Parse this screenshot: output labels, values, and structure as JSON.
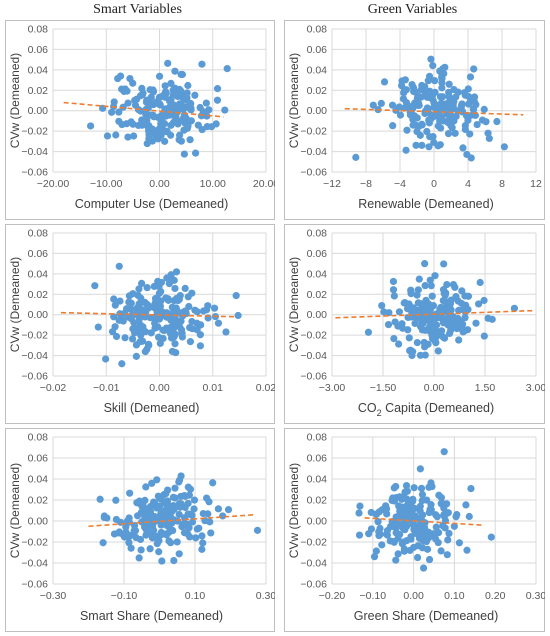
{
  "column_titles": [
    "Smart Variables",
    "Green Variables"
  ],
  "colors": {
    "point": "#5b9bd5",
    "trend": "#ed7d31",
    "grid": "#d9d9d9",
    "frame": "#bfbfbf",
    "text": "#595959"
  },
  "chart_data": [
    {
      "type": "scatter",
      "xlabel": "Computer Use (Demeaned)",
      "ylabel": "CVw (Demeaned)",
      "xlim": [
        -20,
        20
      ],
      "ylim": [
        -0.06,
        0.08
      ],
      "xticks": [
        -20,
        -10,
        0,
        10,
        20
      ],
      "xtick_labels": [
        "−20.00",
        "−10.00",
        "0.00",
        "10.00",
        "20.00"
      ],
      "yticks": [
        -0.06,
        -0.04,
        -0.02,
        0,
        0.02,
        0.04,
        0.06,
        0.08
      ],
      "ytick_labels": [
        "−0.06",
        "−0.04",
        "−0.02",
        "0.00",
        "0.02",
        "0.04",
        "0.06",
        "0.08"
      ],
      "trendline": [
        [
          -18,
          0.008
        ],
        [
          12,
          -0.006
        ]
      ],
      "grid": true
    },
    {
      "type": "scatter",
      "xlabel": "Renewable  (Demeaned)",
      "ylabel": "CVw (Demeaned)",
      "xlim": [
        -12,
        12
      ],
      "ylim": [
        -0.06,
        0.08
      ],
      "xticks": [
        -12,
        -8,
        -4,
        0,
        4,
        8,
        12
      ],
      "xtick_labels": [
        "−12",
        "−8",
        "−4",
        "0",
        "4",
        "8",
        "12"
      ],
      "yticks": [
        -0.06,
        -0.04,
        -0.02,
        0,
        0.02,
        0.04,
        0.06,
        0.08
      ],
      "ytick_labels": [
        "−0.06",
        "−0.04",
        "−0.02",
        "0.00",
        "0.02",
        "0.04",
        "0.06",
        "0.08"
      ],
      "trendline": [
        [
          -10.5,
          0.002
        ],
        [
          10.5,
          -0.004
        ]
      ],
      "grid": true
    },
    {
      "type": "scatter",
      "xlabel": "Skill  (Demeaned)",
      "ylabel": "CVw (Demeaned)",
      "xlim": [
        -0.02,
        0.02
      ],
      "ylim": [
        -0.06,
        0.08
      ],
      "xticks": [
        -0.02,
        -0.01,
        0,
        0.01,
        0.02
      ],
      "xtick_labels": [
        "−0.02",
        "−0.01",
        "0.00",
        "0.01",
        "0.02"
      ],
      "yticks": [
        -0.06,
        -0.04,
        -0.02,
        0,
        0.02,
        0.04,
        0.06,
        0.08
      ],
      "ytick_labels": [
        "−0.06",
        "−0.04",
        "−0.02",
        "0.00",
        "0.02",
        "0.04",
        "0.06",
        "0.08"
      ],
      "trendline": [
        [
          -0.0185,
          0.002
        ],
        [
          0.0145,
          -0.002
        ]
      ],
      "grid": true
    },
    {
      "type": "scatter",
      "xlabel_main": "CO",
      "xlabel_sub": "2",
      "xlabel_rest": " Capita (Demeaned)",
      "ylabel": "CVw (Demeaned)",
      "xlim": [
        -3,
        3
      ],
      "ylim": [
        -0.06,
        0.08
      ],
      "xticks": [
        -3,
        -1.5,
        0,
        1.5,
        3
      ],
      "xtick_labels": [
        "−3.00",
        "−1.50",
        "0.00",
        "1.50",
        "3.00"
      ],
      "yticks": [
        -0.06,
        -0.04,
        -0.02,
        0,
        0.02,
        0.04,
        0.06,
        0.08
      ],
      "ytick_labels": [
        "−0.06",
        "−0.04",
        "−0.02",
        "0.00",
        "0.02",
        "0.04",
        "0.06",
        "0.08"
      ],
      "trendline": [
        [
          -2.9,
          -0.003
        ],
        [
          2.9,
          0.004
        ]
      ],
      "grid": true
    },
    {
      "type": "scatter",
      "xlabel": "Smart Share (Demeaned)",
      "ylabel": "CVw (Demeaned)",
      "xlim": [
        -0.3,
        0.3
      ],
      "ylim": [
        -0.06,
        0.08
      ],
      "xticks": [
        -0.3,
        -0.1,
        0.1,
        0.3
      ],
      "xtick_labels": [
        "−0.30",
        "−0.10",
        "0.10",
        "0.30"
      ],
      "yticks": [
        -0.06,
        -0.04,
        -0.02,
        0,
        0.02,
        0.04,
        0.06,
        0.08
      ],
      "ytick_labels": [
        "−0.06",
        "−0.04",
        "−0.02",
        "0.00",
        "0.02",
        "0.04",
        "0.06",
        "0.08"
      ],
      "trendline": [
        [
          -0.2,
          -0.005
        ],
        [
          0.27,
          0.006
        ]
      ],
      "grid": true
    },
    {
      "type": "scatter",
      "xlabel": "Green Share (Demeaned)",
      "ylabel": "CVw (Demeaned)",
      "xlim": [
        -0.2,
        0.3
      ],
      "ylim": [
        -0.06,
        0.08
      ],
      "xticks": [
        -0.2,
        -0.1,
        0,
        0.1,
        0.2,
        0.3
      ],
      "xtick_labels": [
        "−0.20",
        "−0.10",
        "0.00",
        "0.10",
        "0.20",
        "0.30"
      ],
      "yticks": [
        -0.06,
        -0.04,
        -0.02,
        0,
        0.02,
        0.04,
        0.06,
        0.08
      ],
      "ytick_labels": [
        "−0.06",
        "−0.04",
        "−0.02",
        "0.00",
        "0.02",
        "0.04",
        "0.06",
        "0.08"
      ],
      "trendline": [
        [
          -0.12,
          0.003
        ],
        [
          0.17,
          -0.004
        ]
      ],
      "grid": true
    }
  ]
}
